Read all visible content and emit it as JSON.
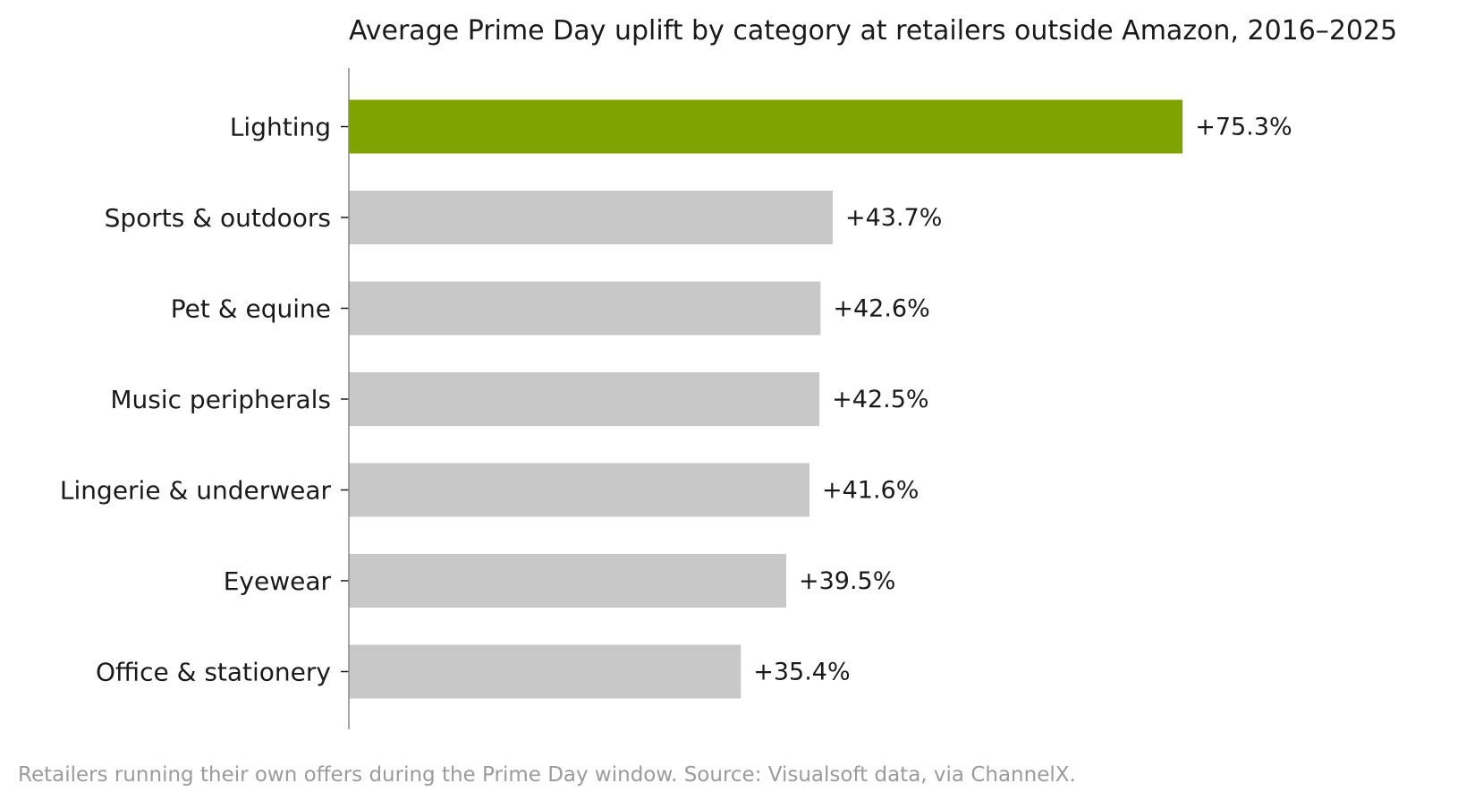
{
  "chart_data": {
    "type": "bar",
    "orientation": "horizontal",
    "title": "Average Prime Day uplift by category at retailers outside Amazon, 2016–2025",
    "xlabel": "",
    "ylabel": "",
    "categories": [
      "Lighting",
      "Sports & outdoors",
      "Pet & equine",
      "Music peripherals",
      "Lingerie & underwear",
      "Eyewear",
      "Office & stationery"
    ],
    "values": [
      75.3,
      43.7,
      42.6,
      42.5,
      41.6,
      39.5,
      35.4
    ],
    "data_labels": [
      "+75.3%",
      "+43.7%",
      "+42.6%",
      "+42.5%",
      "+41.6%",
      "+39.5%",
      "+35.4%"
    ],
    "unit": "%",
    "highlight_index": 0,
    "colors": {
      "highlight": "#7fa402",
      "default": "#c8c8c8",
      "axis": "#888888",
      "text": "#1a1a1a",
      "footnote": "#9b9b9b"
    },
    "grid": false,
    "legend": "none",
    "footnote": "Retailers running their own offers during the Prime Day window. Source: Visualsoft data, via ChannelX."
  }
}
